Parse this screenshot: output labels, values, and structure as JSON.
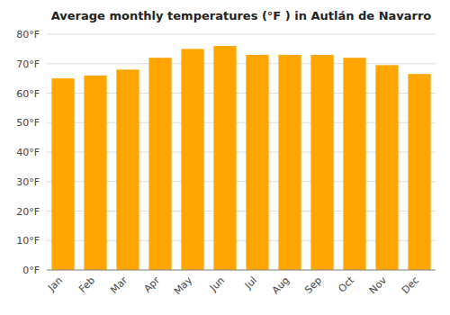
{
  "chart_data": {
    "type": "bar",
    "title": "Average monthly temperatures (°F ) in Autlán de Navarro",
    "categories": [
      "Jan",
      "Feb",
      "Mar",
      "Apr",
      "May",
      "Jun",
      "Jul",
      "Aug",
      "Sep",
      "Oct",
      "Nov",
      "Dec"
    ],
    "values": [
      65,
      66,
      68,
      72,
      75,
      76,
      73,
      73,
      73,
      72,
      69.5,
      66.5
    ],
    "color": "#FFA500",
    "ylim": [
      0,
      80
    ],
    "yticks": [
      {
        "value": 0,
        "label": "0°F"
      },
      {
        "value": 10,
        "label": "10°F"
      },
      {
        "value": 20,
        "label": "20°F"
      },
      {
        "value": 30,
        "label": "30°F"
      },
      {
        "value": 40,
        "label": "40°F"
      },
      {
        "value": 50,
        "label": "50°F"
      },
      {
        "value": 60,
        "label": "60°F"
      },
      {
        "value": 70,
        "label": "70°F"
      },
      {
        "value": 80,
        "label": "80°F"
      }
    ],
    "grid": true
  }
}
